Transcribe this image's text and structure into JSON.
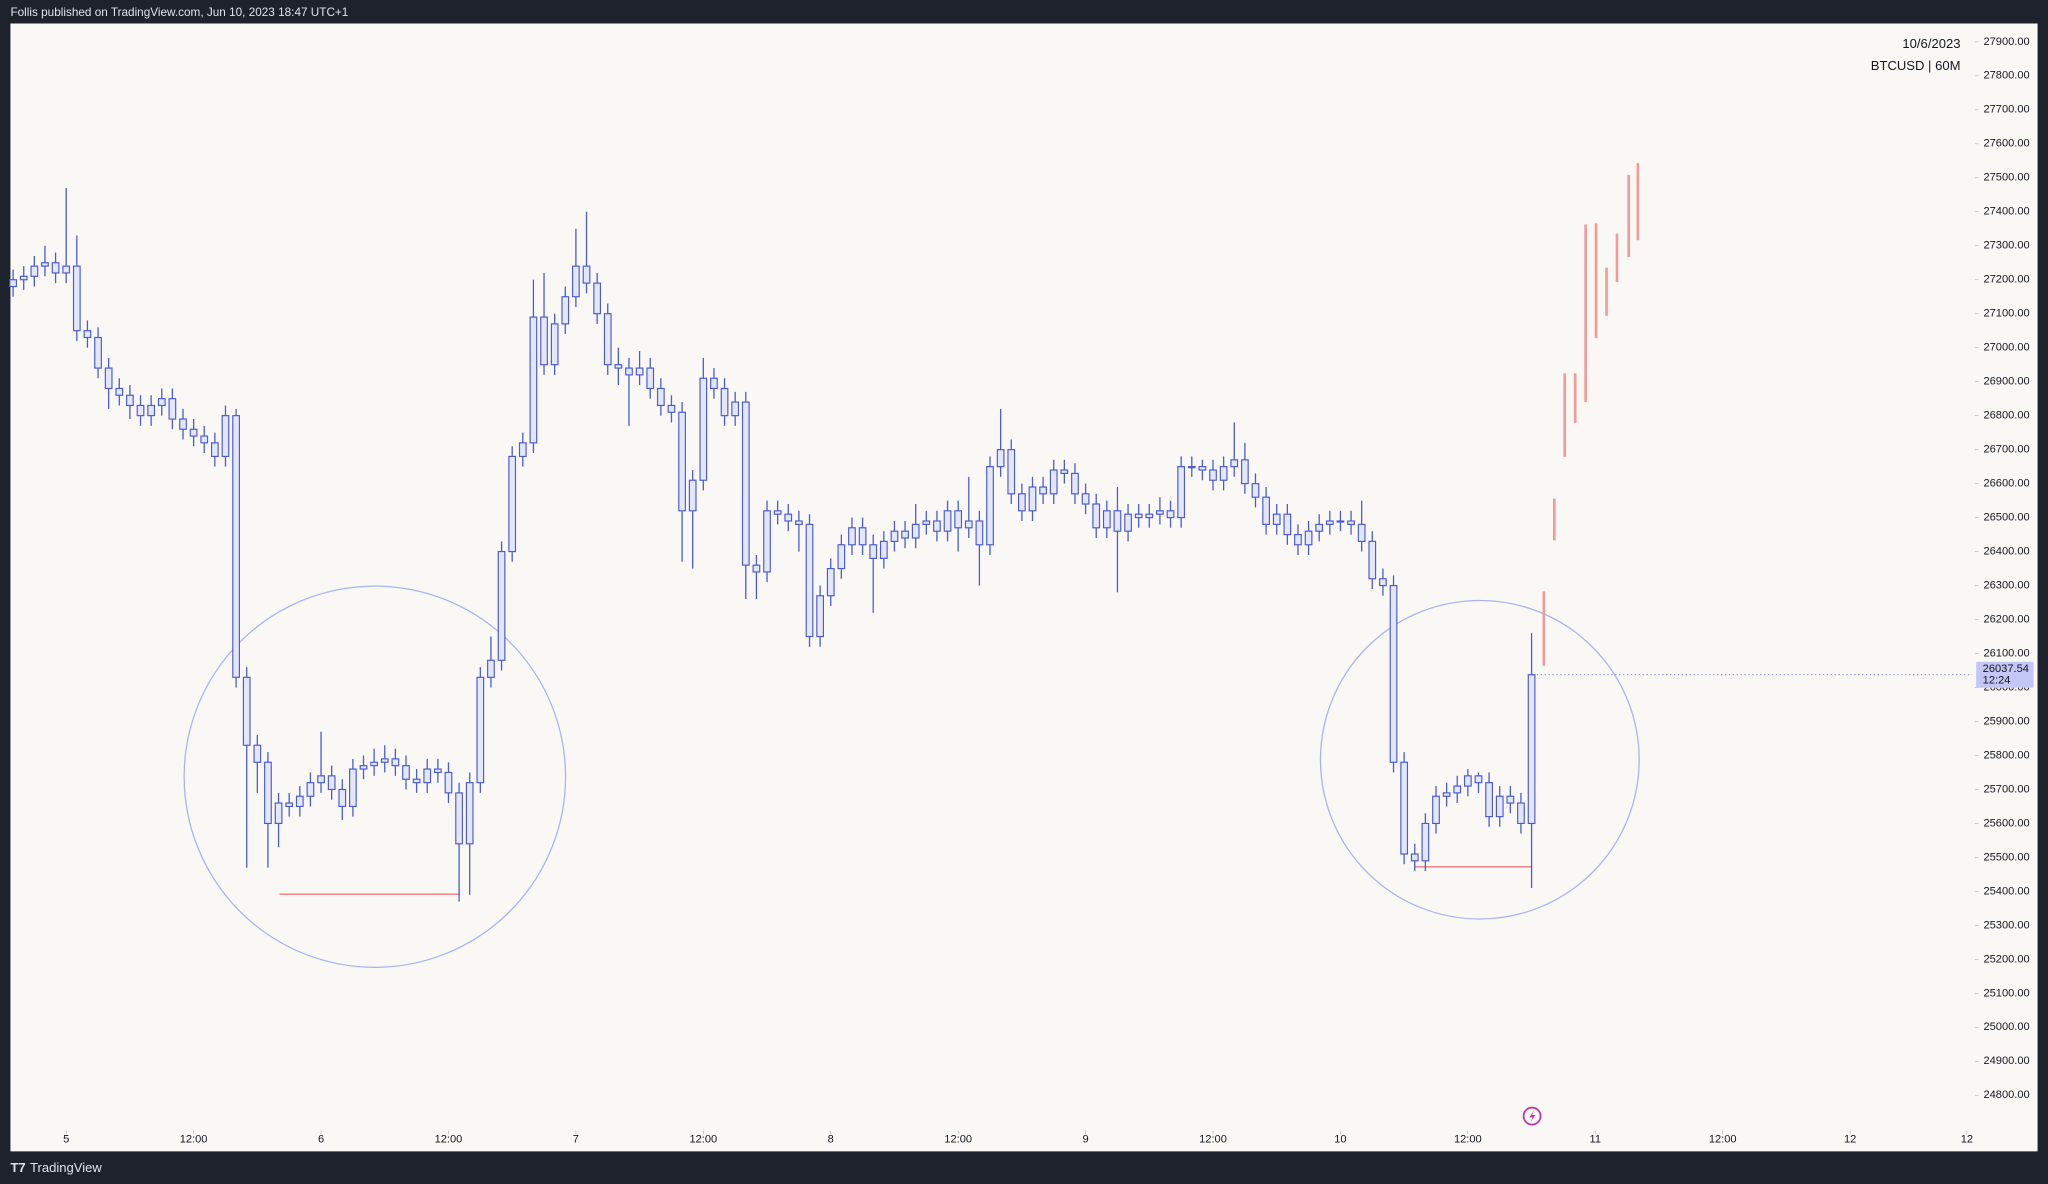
{
  "header": {
    "text": "Follis published on TradingView.com, Jun 10, 2023 18:47 UTC+1"
  },
  "footer": {
    "brand": "TradingView"
  },
  "chart_data": {
    "type": "candlestick",
    "date": "10/6/2023",
    "symbol": "BTCUSD | 60M",
    "countdown": "12:24",
    "color": "#4b5bd6",
    "body_fill": "#e4e7fb",
    "open": [
      27180,
      27200,
      27210,
      27240,
      27250,
      27220,
      27240,
      27050,
      27030,
      26940,
      26880,
      26860,
      26830,
      26800,
      26830,
      26850,
      26790,
      26760,
      26740,
      26720,
      26680,
      26800,
      26030,
      25830,
      25780,
      25600,
      25660,
      25650,
      25680,
      25720,
      25740,
      25700,
      25650,
      25760,
      25770,
      25780,
      25790,
      25770,
      25730,
      25720,
      25760,
      25750,
      25690,
      25540,
      25720,
      26030,
      26080,
      26400,
      26680,
      26720,
      27090,
      26950,
      27070,
      27150,
      27240,
      27190,
      27100,
      26950,
      26940,
      26920,
      26940,
      26880,
      26830,
      26810,
      26520,
      26610,
      26910,
      26880,
      26800,
      26840,
      26360,
      26340,
      26520,
      26510,
      26490,
      26480,
      26150,
      26270,
      26350,
      26420,
      26470,
      26420,
      26380,
      26430,
      26460,
      26440,
      26480,
      26490,
      26460,
      26520,
      26470,
      26490,
      26420,
      26650,
      26700,
      26570,
      26520,
      26590,
      26570,
      26640,
      26630,
      26570,
      26540,
      26470,
      26520,
      26460,
      26510,
      26500,
      26510,
      26520,
      26500,
      26650,
      26650,
      26640,
      26610,
      26650,
      26670,
      26600,
      26560,
      26480,
      26510,
      26450,
      26420,
      26460,
      26480,
      26490,
      26490,
      26480,
      26430,
      26320,
      26300,
      25780,
      25510,
      25490,
      25600,
      25680,
      25690,
      25710,
      25740,
      25720,
      25620,
      25680,
      25660,
      25600
    ],
    "high": [
      27230,
      27240,
      27270,
      27300,
      27280,
      27470,
      27330,
      27080,
      27060,
      26970,
      26910,
      26890,
      26860,
      26860,
      26880,
      26880,
      26820,
      26790,
      26770,
      26750,
      26830,
      26820,
      26060,
      25860,
      25810,
      25690,
      25690,
      25710,
      25750,
      25870,
      25770,
      25730,
      25790,
      25800,
      25820,
      25830,
      25820,
      25800,
      25760,
      25790,
      25790,
      25780,
      25720,
      25750,
      26060,
      26150,
      26430,
      26710,
      26750,
      27200,
      27220,
      27100,
      27180,
      27350,
      27400,
      27220,
      27130,
      27000,
      26970,
      26990,
      26970,
      26910,
      26860,
      26840,
      26640,
      26970,
      26940,
      26910,
      26870,
      26870,
      26390,
      26550,
      26550,
      26540,
      26520,
      26510,
      26300,
      26380,
      26450,
      26500,
      26500,
      26450,
      26460,
      26490,
      26490,
      26540,
      26520,
      26520,
      26550,
      26550,
      26620,
      26520,
      26680,
      26820,
      26730,
      26600,
      26620,
      26620,
      26670,
      26670,
      26660,
      26600,
      26570,
      26550,
      26590,
      26540,
      26540,
      26540,
      26560,
      26550,
      26680,
      26680,
      26670,
      26670,
      26680,
      26780,
      26720,
      26630,
      26590,
      26540,
      26540,
      26480,
      26490,
      26510,
      26520,
      26520,
      26520,
      26550,
      26460,
      26350,
      26330,
      25810,
      25540,
      25630,
      25710,
      25720,
      25740,
      25760,
      25750,
      25750,
      25710,
      25710,
      25690,
      26160
    ],
    "low": [
      27150,
      27170,
      27180,
      27210,
      27190,
      27190,
      27020,
      27000,
      26910,
      26820,
      26830,
      26790,
      26770,
      26770,
      26800,
      26760,
      26730,
      26710,
      26690,
      26650,
      26650,
      26000,
      25470,
      25690,
      25470,
      25530,
      25620,
      25620,
      25650,
      25690,
      25670,
      25610,
      25620,
      25730,
      25740,
      25750,
      25740,
      25700,
      25690,
      25690,
      25720,
      25660,
      25370,
      25390,
      25690,
      26000,
      26050,
      26370,
      26650,
      26690,
      26920,
      26920,
      27040,
      27120,
      27160,
      27070,
      26920,
      26890,
      26770,
      26890,
      26850,
      26800,
      26780,
      26370,
      26350,
      26580,
      26850,
      26770,
      26770,
      26260,
      26260,
      26310,
      26480,
      26460,
      26400,
      26120,
      26120,
      26240,
      26320,
      26390,
      26390,
      26220,
      26350,
      26400,
      26410,
      26410,
      26450,
      26430,
      26430,
      26400,
      26440,
      26300,
      26390,
      26620,
      26540,
      26490,
      26490,
      26540,
      26540,
      26600,
      26540,
      26510,
      26440,
      26440,
      26280,
      26430,
      26470,
      26470,
      26480,
      26470,
      26470,
      26620,
      26610,
      26580,
      26580,
      26620,
      26570,
      26530,
      26450,
      26450,
      26420,
      26390,
      26390,
      26430,
      26450,
      26460,
      26450,
      26400,
      26290,
      26270,
      25750,
      25480,
      25460,
      25460,
      25570,
      25650,
      25660,
      25680,
      25690,
      25590,
      25590,
      25630,
      25570,
      25410
    ],
    "close": [
      27200,
      27210,
      27240,
      27250,
      27220,
      27240,
      27050,
      27030,
      26940,
      26880,
      26860,
      26830,
      26800,
      26830,
      26850,
      26790,
      26760,
      26740,
      26720,
      26680,
      26800,
      26030,
      25830,
      25780,
      25600,
      25660,
      25650,
      25680,
      25720,
      25740,
      25700,
      25650,
      25760,
      25770,
      25780,
      25790,
      25770,
      25730,
      25720,
      25760,
      25750,
      25690,
      25540,
      25720,
      26030,
      26080,
      26400,
      26680,
      26720,
      27090,
      26950,
      27070,
      27150,
      27240,
      27190,
      27100,
      26950,
      26940,
      26920,
      26940,
      26880,
      26830,
      26810,
      26520,
      26610,
      26910,
      26880,
      26800,
      26840,
      26360,
      26340,
      26520,
      26510,
      26490,
      26480,
      26150,
      26270,
      26350,
      26420,
      26470,
      26420,
      26380,
      26430,
      26460,
      26440,
      26480,
      26490,
      26460,
      26520,
      26470,
      26490,
      26420,
      26650,
      26700,
      26570,
      26520,
      26590,
      26570,
      26640,
      26630,
      26570,
      26540,
      26470,
      26520,
      26460,
      26510,
      26500,
      26510,
      26520,
      26500,
      26650,
      26650,
      26640,
      26610,
      26650,
      26670,
      26600,
      26560,
      26480,
      26510,
      26450,
      26420,
      26460,
      26480,
      26490,
      26490,
      26480,
      26430,
      26320,
      26300,
      25780,
      25510,
      25490,
      25600,
      25680,
      25690,
      25710,
      25740,
      25720,
      25620,
      25680,
      25660,
      25600,
      26037.54
    ],
    "xlim": [
      -0.25,
      184.5
    ],
    "xticks": [
      {
        "value": 5,
        "label": "5"
      },
      {
        "value": 17,
        "label": "12:00"
      },
      {
        "value": 29,
        "label": "6"
      },
      {
        "value": 41,
        "label": "12:00"
      },
      {
        "value": 53,
        "label": "7"
      },
      {
        "value": 65,
        "label": "12:00"
      },
      {
        "value": 77,
        "label": "8"
      },
      {
        "value": 89,
        "label": "12:00"
      },
      {
        "value": 101,
        "label": "9"
      },
      {
        "value": 113,
        "label": "12:00"
      },
      {
        "value": 125,
        "label": "10"
      },
      {
        "value": 137,
        "label": "12:00"
      },
      {
        "value": 149,
        "label": "11"
      },
      {
        "value": 161,
        "label": "12:00"
      },
      {
        "value": 173,
        "label": "12"
      },
      {
        "value": 184,
        "label": "12"
      }
    ],
    "ylim": [
      24635,
      27954
    ],
    "yticks": [
      {
        "value": 24800,
        "label": "24800.00"
      },
      {
        "value": 24900,
        "label": "24900.00"
      },
      {
        "value": 25000,
        "label": "25000.00"
      },
      {
        "value": 25100,
        "label": "25100.00"
      },
      {
        "value": 25200,
        "label": "25200.00"
      },
      {
        "value": 25300,
        "label": "25300.00"
      },
      {
        "value": 25400,
        "label": "25400.00"
      },
      {
        "value": 25500,
        "label": "25500.00"
      },
      {
        "value": 25600,
        "label": "25600.00"
      },
      {
        "value": 25700,
        "label": "25700.00"
      },
      {
        "value": 25800,
        "label": "25800.00"
      },
      {
        "value": 25900,
        "label": "25900.00"
      },
      {
        "value": 26000,
        "label": "26000.00"
      },
      {
        "value": 26100,
        "label": "26100.00"
      },
      {
        "value": 26200,
        "label": "26200.00"
      },
      {
        "value": 26300,
        "label": "26300.00"
      },
      {
        "value": 26400,
        "label": "26400.00"
      },
      {
        "value": 26500,
        "label": "26500.00"
      },
      {
        "value": 26600,
        "label": "26600.00"
      },
      {
        "value": 26700,
        "label": "26700.00"
      },
      {
        "value": 26800,
        "label": "26800.00"
      },
      {
        "value": 26900,
        "label": "26900.00"
      },
      {
        "value": 27000,
        "label": "27000.00"
      },
      {
        "value": 27100,
        "label": "27100.00"
      },
      {
        "value": 27200,
        "label": "27200.00"
      },
      {
        "value": 27300,
        "label": "27300.00"
      },
      {
        "value": 27400,
        "label": "27400.00"
      },
      {
        "value": 27500,
        "label": "27500.00"
      },
      {
        "value": 27600,
        "label": "27600.00"
      },
      {
        "value": 27700,
        "label": "27700.00"
      },
      {
        "value": 27800,
        "label": "27800.00"
      },
      {
        "value": 27900,
        "label": "27900.00"
      }
    ]
  }
}
